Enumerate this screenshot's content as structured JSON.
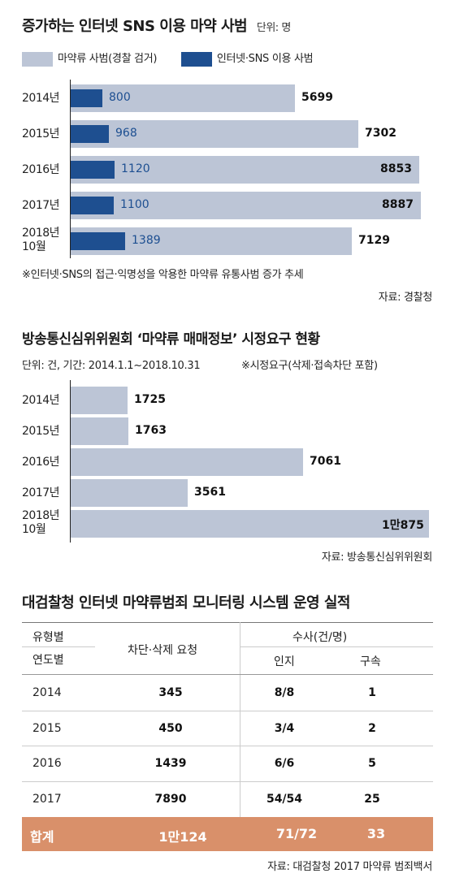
{
  "chart_data": [
    {
      "type": "bar",
      "title": "증가하는 인터넷 SNS 이용 마약 사범",
      "unit": "단위: 명",
      "categories": [
        "2014년",
        "2015년",
        "2016년",
        "2017년",
        "2018년 10월"
      ],
      "series": [
        {
          "name": "마약류 사범(경찰 검거)",
          "values": [
            5699,
            7302,
            8853,
            8887,
            7129
          ]
        },
        {
          "name": "인터넷·SNS 이용 사범",
          "values": [
            800,
            968,
            1120,
            1100,
            1389
          ]
        }
      ],
      "note": "※인터넷·SNS의 접근·익명성을 악용한 마약류 유통사범 증가 추세",
      "source": "자료: 경찰청",
      "colors": {
        "total": "#bcc5d6",
        "internet": "#1e4f90"
      },
      "xlim": [
        0,
        8887
      ]
    },
    {
      "type": "bar",
      "title": "방송통신심위위원회 ‘마약류 매매정보’ 시정요구 현황",
      "subtitle": "단위: 건,  기간: 2014.1.1~2018.10.31",
      "note": "※시정요구(삭제·접속차단 포함)",
      "categories": [
        "2014년",
        "2015년",
        "2016년",
        "2017년",
        "2018년 10월"
      ],
      "values": [
        1725,
        1763,
        7061,
        3561,
        10875
      ],
      "value_labels": [
        "1725",
        "1763",
        "7061",
        "3561",
        "1만875"
      ],
      "source": "자료: 방송통신심위위원회",
      "colors": {
        "bar": "#bcc5d6"
      },
      "xlim": [
        0,
        10875
      ]
    },
    {
      "type": "table",
      "title": "대검찰청 인터넷 마약류범죄 모니터링 시스템 운영 실적",
      "header": {
        "type_label": "유형별",
        "year_label": "연도별",
        "block_request": "차단·삭제 요청",
        "investigation": "수사(건/명)",
        "recognized": "인지",
        "arrested": "구속"
      },
      "rows": [
        {
          "year": "2014",
          "block": "345",
          "recognized": "8/8",
          "arrested": "1"
        },
        {
          "year": "2015",
          "block": "450",
          "recognized": "3/4",
          "arrested": "2"
        },
        {
          "year": "2016",
          "block": "1439",
          "recognized": "6/6",
          "arrested": "5"
        },
        {
          "year": "2017",
          "block": "7890",
          "recognized": "54/54",
          "arrested": "25"
        }
      ],
      "total": {
        "label": "합계",
        "block": "1만124",
        "recognized": "71/72",
        "arrested": "33"
      },
      "source": "자료: 대검찰청 2017 마약류 범죄백서",
      "colors": {
        "total_row": "#d9906a"
      }
    }
  ]
}
